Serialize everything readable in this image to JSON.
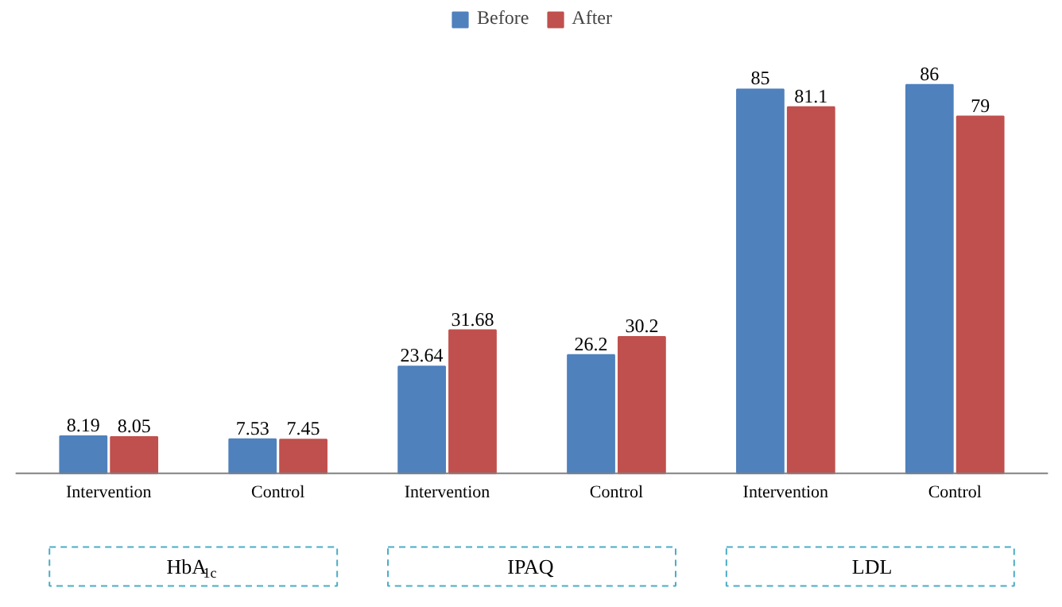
{
  "chart_data": {
    "type": "bar",
    "categories": [
      "Intervention",
      "Control",
      "Intervention",
      "Control",
      "Intervention",
      "Control"
    ],
    "series": [
      {
        "name": "Before",
        "color": "#4f81bd",
        "values": [
          8.19,
          7.53,
          23.64,
          26.2,
          85,
          86
        ]
      },
      {
        "name": "After",
        "color": "#c0504d",
        "values": [
          8.05,
          7.45,
          31.68,
          30.2,
          81.1,
          79
        ]
      }
    ],
    "data_labels": true,
    "legend": "top",
    "annotations": [
      "HbA$_{1c}$",
      "IPAQ",
      "LDL"
    ]
  }
}
